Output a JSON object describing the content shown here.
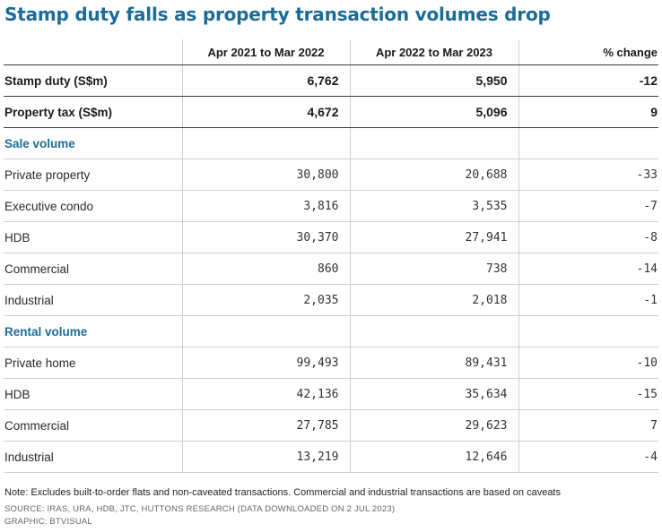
{
  "title": "Stamp duty falls as property transaction volumes drop",
  "chart_data": {
    "type": "table",
    "title": "Stamp duty falls as property transaction volumes drop",
    "columns": [
      "",
      "Apr 2021 to Mar 2022",
      "Apr 2022 to Mar 2023",
      "% change"
    ],
    "rows": [
      {
        "kind": "bold",
        "label": "Stamp duty (S$m)",
        "values": [
          "6,762",
          "5,950",
          "-12"
        ]
      },
      {
        "kind": "bold",
        "label": "Property tax (S$m)",
        "values": [
          "4,672",
          "5,096",
          "9"
        ]
      },
      {
        "kind": "section",
        "label": "Sale volume",
        "values": [
          "",
          "",
          ""
        ]
      },
      {
        "kind": "row",
        "label": "Private property",
        "values": [
          "30,800",
          "20,688",
          "-33"
        ]
      },
      {
        "kind": "row",
        "label": "Executive condo",
        "values": [
          "3,816",
          "3,535",
          "-7"
        ]
      },
      {
        "kind": "row",
        "label": "HDB",
        "values": [
          "30,370",
          "27,941",
          "-8"
        ]
      },
      {
        "kind": "row",
        "label": "Commercial",
        "values": [
          "860",
          "738",
          "-14"
        ]
      },
      {
        "kind": "row",
        "label": "Industrial",
        "values": [
          "2,035",
          "2,018",
          "-1"
        ]
      },
      {
        "kind": "section",
        "label": "Rental volume",
        "values": [
          "",
          "",
          ""
        ]
      },
      {
        "kind": "row",
        "label": "Private home",
        "values": [
          "99,493",
          "89,431",
          "-10"
        ]
      },
      {
        "kind": "row",
        "label": "HDB",
        "values": [
          "42,136",
          "35,634",
          "-15"
        ]
      },
      {
        "kind": "row",
        "label": "Commercial",
        "values": [
          "27,785",
          "29,623",
          "7"
        ]
      },
      {
        "kind": "row",
        "label": "Industrial",
        "values": [
          "13,219",
          "12,646",
          "-4"
        ]
      }
    ]
  },
  "footer": {
    "note": "Note: Excludes built-to-order flats and non-caveated transactions. Commercial and industrial transactions are based on caveats",
    "source": "SOURCE: IRAS, URA, HDB, JTC, HUTTONS RESEARCH (DATA DOWNLOADED ON 2 JUL 2023)",
    "graphic": "GRAPHIC: BTVISUAL"
  },
  "colors": {
    "accent": "#1c6c98",
    "rule": "#3a3a3a",
    "grid": "#cfcfcf"
  }
}
